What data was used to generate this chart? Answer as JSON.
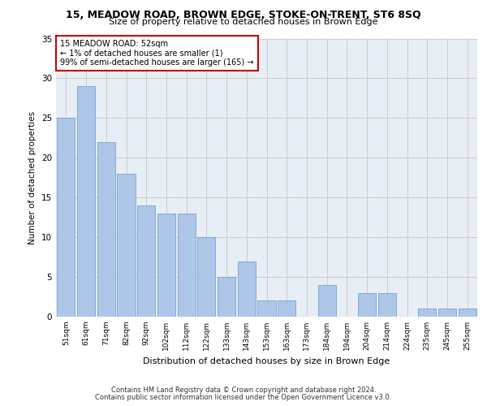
{
  "title": "15, MEADOW ROAD, BROWN EDGE, STOKE-ON-TRENT, ST6 8SQ",
  "subtitle": "Size of property relative to detached houses in Brown Edge",
  "xlabel": "Distribution of detached houses by size in Brown Edge",
  "ylabel": "Number of detached properties",
  "categories": [
    "51sqm",
    "61sqm",
    "71sqm",
    "82sqm",
    "92sqm",
    "102sqm",
    "112sqm",
    "122sqm",
    "133sqm",
    "143sqm",
    "153sqm",
    "163sqm",
    "173sqm",
    "184sqm",
    "194sqm",
    "204sqm",
    "214sqm",
    "224sqm",
    "235sqm",
    "245sqm",
    "255sqm"
  ],
  "values": [
    25,
    29,
    22,
    18,
    14,
    13,
    13,
    10,
    5,
    7,
    2,
    2,
    0,
    4,
    0,
    3,
    3,
    0,
    1,
    1,
    1
  ],
  "bar_color": "#aec6e8",
  "bar_edge_color": "#6699cc",
  "annotation_text": "15 MEADOW ROAD: 52sqm\n← 1% of detached houses are smaller (1)\n99% of semi-detached houses are larger (165) →",
  "ylim": [
    0,
    35
  ],
  "yticks": [
    0,
    5,
    10,
    15,
    20,
    25,
    30,
    35
  ],
  "grid_color": "#cccccc",
  "bg_color": "#e8eef5",
  "footer1": "Contains HM Land Registry data © Crown copyright and database right 2024.",
  "footer2": "Contains public sector information licensed under the Open Government Licence v3.0."
}
